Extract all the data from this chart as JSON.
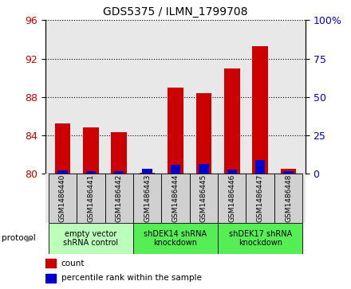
{
  "title": "GDS5375 / ILMN_1799708",
  "samples": [
    "GSM1486440",
    "GSM1486441",
    "GSM1486442",
    "GSM1486443",
    "GSM1486444",
    "GSM1486445",
    "GSM1486446",
    "GSM1486447",
    "GSM1486448"
  ],
  "count_values": [
    85.2,
    84.8,
    84.3,
    80.1,
    89.0,
    88.4,
    91.0,
    93.3,
    80.5
  ],
  "percentile_values": [
    1.8,
    1.5,
    1.5,
    2.8,
    5.5,
    6.0,
    2.5,
    8.5,
    1.2
  ],
  "ylim_left": [
    80,
    96
  ],
  "ylim_right": [
    0,
    100
  ],
  "yticks_left": [
    80,
    84,
    88,
    92,
    96
  ],
  "yticks_right": [
    0,
    25,
    50,
    75,
    100
  ],
  "ytick_labels_right": [
    "0",
    "25",
    "50",
    "75",
    "100%"
  ],
  "red_color": "#cc0000",
  "blue_color": "#0000cc",
  "bar_width": 0.55,
  "blue_bar_width": 0.35,
  "groups": [
    {
      "label": "empty vector\nshRNA control",
      "start": 0,
      "end": 2,
      "color": "#bbffbb"
    },
    {
      "label": "shDEK14 shRNA\nknockdown",
      "start": 3,
      "end": 5,
      "color": "#55ee55"
    },
    {
      "label": "shDEK17 shRNA\nknockdown",
      "start": 6,
      "end": 8,
      "color": "#55ee55"
    }
  ],
  "legend_items": [
    {
      "label": "count",
      "color": "#cc0000"
    },
    {
      "label": "percentile rank within the sample",
      "color": "#0000cc"
    }
  ],
  "protocol_label": "protocol",
  "plot_bg_color": "#e8e8e8",
  "sample_box_color": "#d0d0d0"
}
